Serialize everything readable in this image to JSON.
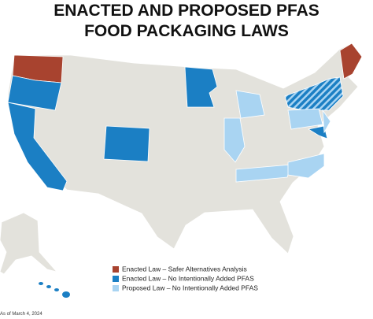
{
  "header": {
    "title_lines": [
      "ENACTED AND PROPOSED PFAS",
      "FOOD PACKAGING LAWS"
    ]
  },
  "legend": {
    "items": [
      {
        "label": "Enacted Law – Safer Alternatives Analysis",
        "color": "#a8432f"
      },
      {
        "label": "Enacted Law – No Intentionally Added PFAS",
        "color": "#1b7fc4"
      },
      {
        "label": "Proposed Law – No Intentionally Added PFAS",
        "color": "#a9d4f2"
      }
    ]
  },
  "footnote": "As of March 4, 2024"
}
